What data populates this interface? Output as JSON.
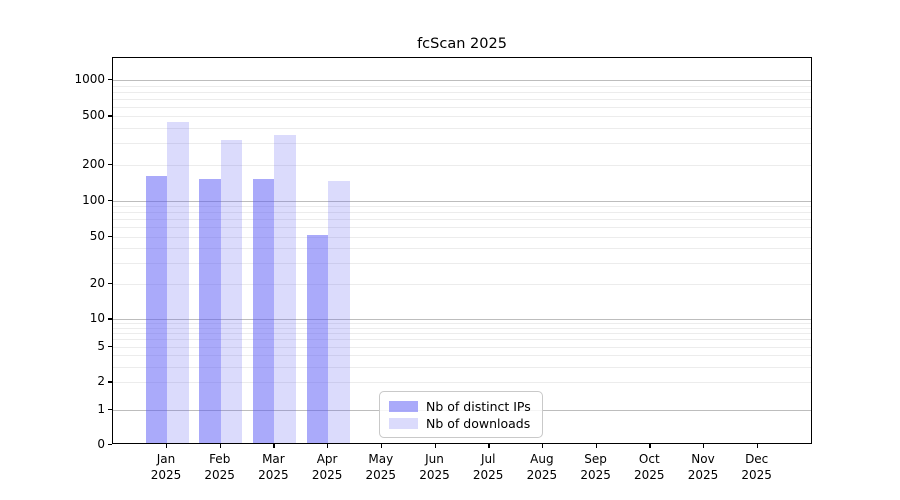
{
  "figure": {
    "title": "fcScan 2025"
  },
  "chart_data": {
    "type": "bar",
    "title": "fcScan 2025",
    "yscale": "symlog",
    "xlabel": "",
    "ylabel": "",
    "categories": [
      "Jan",
      "Feb",
      "Mar",
      "Apr",
      "May",
      "Jun",
      "Jul",
      "Aug",
      "Sep",
      "Oct",
      "Nov",
      "Dec"
    ],
    "x_tick_year": "2025",
    "y_ticks": [
      0,
      1,
      2,
      5,
      10,
      20,
      50,
      100,
      200,
      500,
      1000
    ],
    "ylim": [
      0,
      1500
    ],
    "grid": true,
    "legend_position": "lower center-left (inside axes)",
    "series": [
      {
        "name": "Nb of distinct IPs",
        "color_hex": "#aaaafa",
        "css_color": "rgba(85,85,245,0.5)",
        "values": [
          160,
          152,
          151,
          52,
          0,
          0,
          0,
          0,
          0,
          0,
          0,
          0
        ]
      },
      {
        "name": "Nb of downloads",
        "color_hex": "#dbdbfb",
        "css_color": "rgba(85,85,240,0.21)",
        "values": [
          450,
          320,
          350,
          145,
          0,
          0,
          0,
          0,
          0,
          0,
          0,
          0
        ]
      }
    ]
  },
  "colors": {
    "background": "#ffffff",
    "spine": "#000000",
    "grid_major": "#bdbdbd",
    "grid_minor": "#ececec",
    "text": "#000000"
  }
}
